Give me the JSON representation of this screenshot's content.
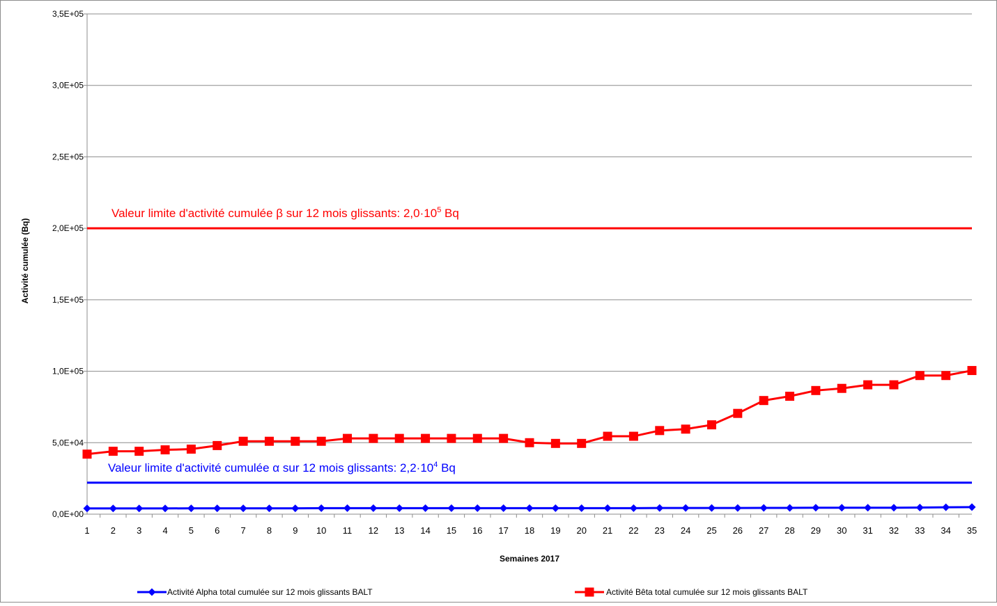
{
  "chart_data": {
    "type": "line",
    "xlabel": "Semaines 2017",
    "ylabel": "Activité cumulée (Bq)",
    "x": [
      1,
      2,
      3,
      4,
      5,
      6,
      7,
      8,
      9,
      10,
      11,
      12,
      13,
      14,
      15,
      16,
      17,
      18,
      19,
      20,
      21,
      22,
      23,
      24,
      25,
      26,
      27,
      28,
      29,
      30,
      31,
      32,
      33,
      34,
      35
    ],
    "x_tick_labels": [
      "1",
      "2",
      "3",
      "4",
      "5",
      "6",
      "7",
      "8",
      "9",
      "10",
      "11",
      "12",
      "13",
      "14",
      "15",
      "16",
      "17",
      "18",
      "19",
      "20",
      "21",
      "22",
      "23",
      "24",
      "25",
      "26",
      "27",
      "28",
      "29",
      "30",
      "31",
      "32",
      "33",
      "34",
      "35"
    ],
    "ylim": [
      0,
      350000
    ],
    "y_ticks": [
      0,
      50000,
      100000,
      150000,
      200000,
      250000,
      300000,
      350000
    ],
    "y_tick_labels": [
      "0,0E+00",
      "5,0E+04",
      "1,0E+05",
      "1,5E+05",
      "2,0E+05",
      "2,5E+05",
      "3,0E+05",
      "3,5E+05"
    ],
    "grid": true,
    "legend_position": "bottom",
    "series": [
      {
        "name": "Activité Alpha total cumulée sur 12 mois glissants BALT",
        "color": "#0000ff",
        "marker": "diamond",
        "values": [
          4000,
          4000,
          4000,
          4000,
          4100,
          4100,
          4100,
          4100,
          4100,
          4200,
          4200,
          4200,
          4200,
          4200,
          4200,
          4200,
          4200,
          4200,
          4200,
          4200,
          4200,
          4200,
          4300,
          4300,
          4300,
          4300,
          4400,
          4400,
          4500,
          4500,
          4500,
          4500,
          4600,
          4800,
          4900
        ]
      },
      {
        "name": "Activité Bêta total cumulée sur 12 mois glissants BALT",
        "color": "#ff0000",
        "marker": "square",
        "values": [
          42000,
          44000,
          44000,
          45000,
          45500,
          48000,
          51000,
          51000,
          51000,
          51000,
          53000,
          53000,
          53000,
          53000,
          53000,
          53000,
          53000,
          50000,
          49500,
          49500,
          54500,
          54500,
          58500,
          59500,
          62500,
          70500,
          79500,
          82500,
          86500,
          88000,
          90500,
          90500,
          97000,
          97000,
          100500
        ]
      }
    ],
    "limits": [
      {
        "value": 200000,
        "color": "#ff0000",
        "label_text": "Valeur limite d'activité cumulée β sur 12 mois glissants: 2,0·10",
        "label_exp": "5",
        "label_unit": " Bq"
      },
      {
        "value": 22000,
        "color": "#0000ff",
        "label_text": "Valeur limite d'activité cumulée α sur 12 mois glissants: 2,2·10",
        "label_exp": "4",
        "label_unit": " Bq"
      }
    ]
  }
}
